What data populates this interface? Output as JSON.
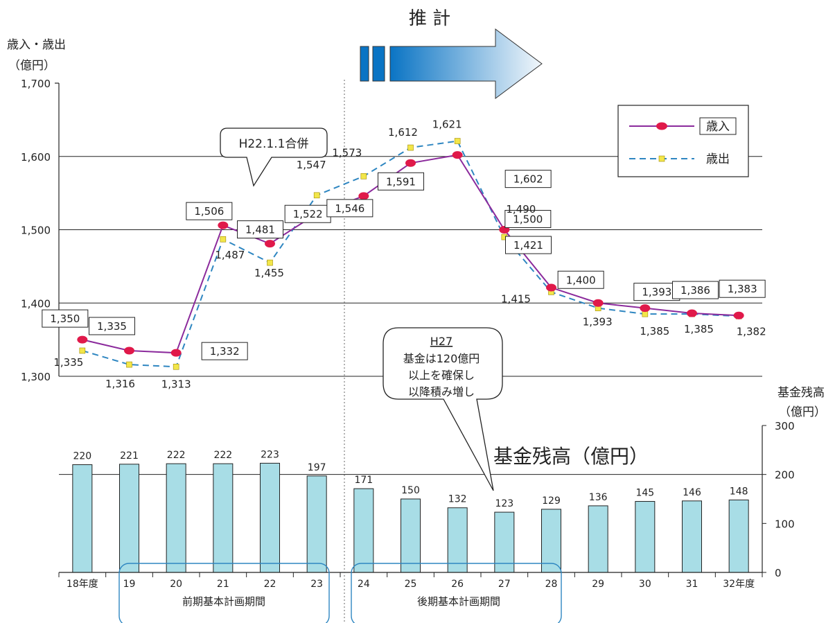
{
  "chart_data": {
    "type": "line",
    "categories": [
      "18年度",
      "19",
      "20",
      "21",
      "22",
      "23",
      "24",
      "25",
      "26",
      "27",
      "28",
      "29",
      "30",
      "31",
      "32年度"
    ],
    "series": [
      {
        "name": "歳入",
        "color": "#8b2a9c",
        "marker_color": "#e0194a",
        "values": [
          1350,
          1335,
          1332,
          1506,
          1481,
          1522,
          1546,
          1591,
          1602,
          1500,
          1421,
          1400,
          1393,
          1386,
          1383
        ]
      },
      {
        "name": "歳出",
        "color": "#2e86c1",
        "marker_color": "#f2e64a",
        "values": [
          1335,
          1316,
          1313,
          1487,
          1455,
          1547,
          1573,
          1612,
          1621,
          1490,
          1415,
          1393,
          1385,
          1385,
          1382
        ]
      }
    ],
    "bar_series": {
      "name": "基金残高",
      "color": "#a8dde6",
      "values": [
        220,
        221,
        222,
        222,
        223,
        197,
        171,
        150,
        132,
        123,
        129,
        136,
        145,
        146,
        148
      ]
    },
    "left_axis": {
      "label_line1": "歳入・歳出",
      "label_line2": "（億円）",
      "ylim": [
        1300,
        1700
      ],
      "ticks": [
        "1,300",
        "1,400",
        "1,500",
        "1,600",
        "1,700"
      ]
    },
    "right_axis": {
      "label_line1": "基金残高",
      "label_line2": "（億円）",
      "ylim": [
        0,
        300
      ],
      "ticks": [
        "0",
        "100",
        "200",
        "300"
      ]
    },
    "arrow_label": "推 計",
    "merge_callout": "H22.1.1合併",
    "fund_callout": {
      "title": "H27",
      "lines": [
        "基金は120億円",
        "以上を確保し",
        "以降積み増し"
      ]
    },
    "fund_title": "基金残高（億円）",
    "periods": [
      {
        "label": "前期基本計画期間"
      },
      {
        "label": "後期基本計画期間"
      }
    ]
  }
}
